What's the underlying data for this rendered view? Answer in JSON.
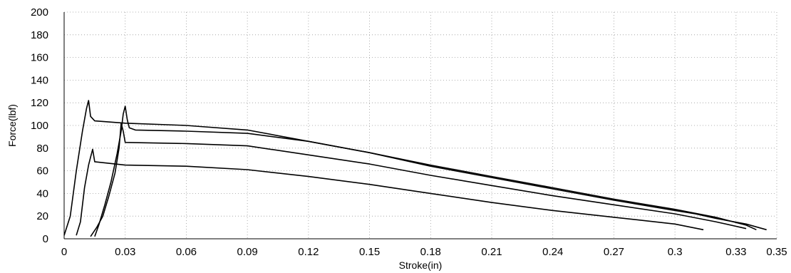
{
  "chart_data": {
    "type": "line",
    "title": "",
    "xlabel": "Stroke(in)",
    "ylabel": "Force(lbf)",
    "xlim": [
      0,
      0.35
    ],
    "ylim": [
      0,
      200
    ],
    "x_ticks": [
      "0",
      "0.03",
      "0.06",
      "0.09",
      "0.12",
      "0.15",
      "0.18",
      "0.21",
      "0.24",
      "0.27",
      "0.3",
      "0.33",
      "0.35"
    ],
    "y_ticks": [
      "0",
      "20",
      "40",
      "60",
      "80",
      "100",
      "120",
      "140",
      "160",
      "180",
      "200"
    ],
    "grid": true,
    "legend": "none",
    "series": [
      {
        "x": [
          0,
          0.003,
          0.006,
          0.009,
          0.011,
          0.012,
          0.013,
          0.015,
          0.03,
          0.06,
          0.09,
          0.12,
          0.15,
          0.18,
          0.21,
          0.24,
          0.27,
          0.3,
          0.31,
          0.32,
          0.335,
          0.345
        ],
        "y": [
          3,
          20,
          60,
          95,
          115,
          122,
          108,
          104,
          102,
          100,
          96,
          86,
          76,
          64,
          54,
          44,
          34,
          25,
          22,
          18,
          13,
          8
        ]
      },
      {
        "x": [
          0.006,
          0.008,
          0.01,
          0.012,
          0.013,
          0.014,
          0.015,
          0.03,
          0.06,
          0.09,
          0.12,
          0.15,
          0.18,
          0.21,
          0.24,
          0.27,
          0.3,
          0.314
        ],
        "y": [
          3,
          15,
          45,
          65,
          72,
          79,
          68,
          65,
          64,
          61,
          55,
          48,
          40,
          32,
          25,
          19,
          13,
          8
        ]
      },
      {
        "x": [
          0.015,
          0.017,
          0.02,
          0.023,
          0.026,
          0.028,
          0.029,
          0.03,
          0.031,
          0.032,
          0.035,
          0.06,
          0.09,
          0.12,
          0.15,
          0.18,
          0.21,
          0.24,
          0.27,
          0.3,
          0.32,
          0.335,
          0.34
        ],
        "y": [
          2,
          12,
          30,
          50,
          75,
          95,
          110,
          117,
          105,
          98,
          96,
          95,
          93,
          86,
          76,
          65,
          55,
          45,
          35,
          26,
          19,
          12,
          8
        ]
      },
      {
        "x": [
          0.013,
          0.016,
          0.019,
          0.022,
          0.025,
          0.027,
          0.028,
          0.029,
          0.03,
          0.06,
          0.09,
          0.12,
          0.15,
          0.18,
          0.21,
          0.24,
          0.27,
          0.3,
          0.32,
          0.335
        ],
        "y": [
          2,
          10,
          20,
          38,
          58,
          80,
          102,
          95,
          85,
          84,
          82,
          74,
          66,
          56,
          47,
          38,
          30,
          22,
          15,
          9
        ]
      }
    ]
  }
}
